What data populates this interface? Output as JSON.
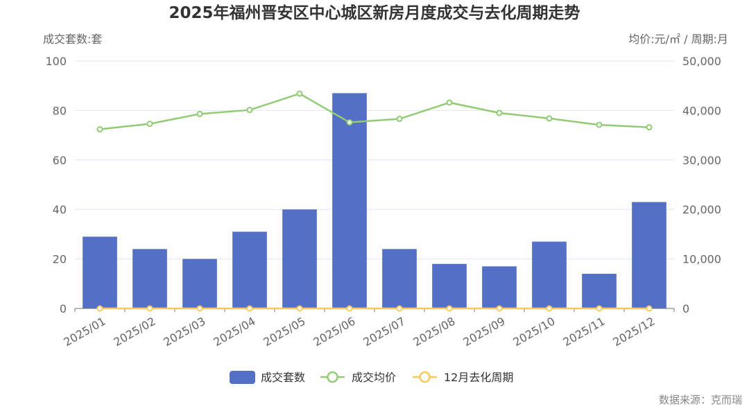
{
  "title": "2025年福州晋安区中心城区新房月度成交与去化周期走势",
  "source": "数据来源：克而瑞",
  "colors": {
    "bar": "#5470c6",
    "price_line": "#91cc75",
    "cycle_line": "#fac858",
    "grid": "#e0e6f1",
    "axis": "#6e7079"
  },
  "chart_data": {
    "type": "bar",
    "categories": [
      "2025/01",
      "2025/02",
      "2025/03",
      "2025/04",
      "2025/05",
      "2025/06",
      "2025/07",
      "2025/08",
      "2025/09",
      "2025/10",
      "2025/11",
      "2025/12"
    ],
    "y_left": {
      "name": "成交套数:套",
      "range": [
        0,
        100
      ],
      "ticks": [
        "0",
        "20",
        "40",
        "60",
        "80",
        "100"
      ]
    },
    "y_right": {
      "name": "均价:元/㎡ / 周期:月",
      "range": [
        0,
        50000
      ],
      "ticks": [
        "0",
        "10,000",
        "20,000",
        "30,000",
        "40,000",
        "50,000"
      ]
    },
    "series": [
      {
        "name": "成交套数",
        "type": "bar",
        "axis": "left",
        "values": [
          29,
          24,
          20,
          31,
          40,
          87,
          24,
          18,
          17,
          27,
          14,
          43
        ]
      },
      {
        "name": "成交均价",
        "type": "line",
        "axis": "right",
        "values": [
          36200,
          37300,
          39300,
          40100,
          43400,
          37600,
          38300,
          41600,
          39500,
          38400,
          37100,
          36600
        ]
      },
      {
        "name": "12月去化周期",
        "type": "line",
        "axis": "right",
        "values": [
          0,
          0,
          0,
          0,
          0,
          0,
          0,
          0,
          0,
          0,
          0,
          0
        ]
      }
    ],
    "legend_position": "bottom-center",
    "grid": true
  }
}
